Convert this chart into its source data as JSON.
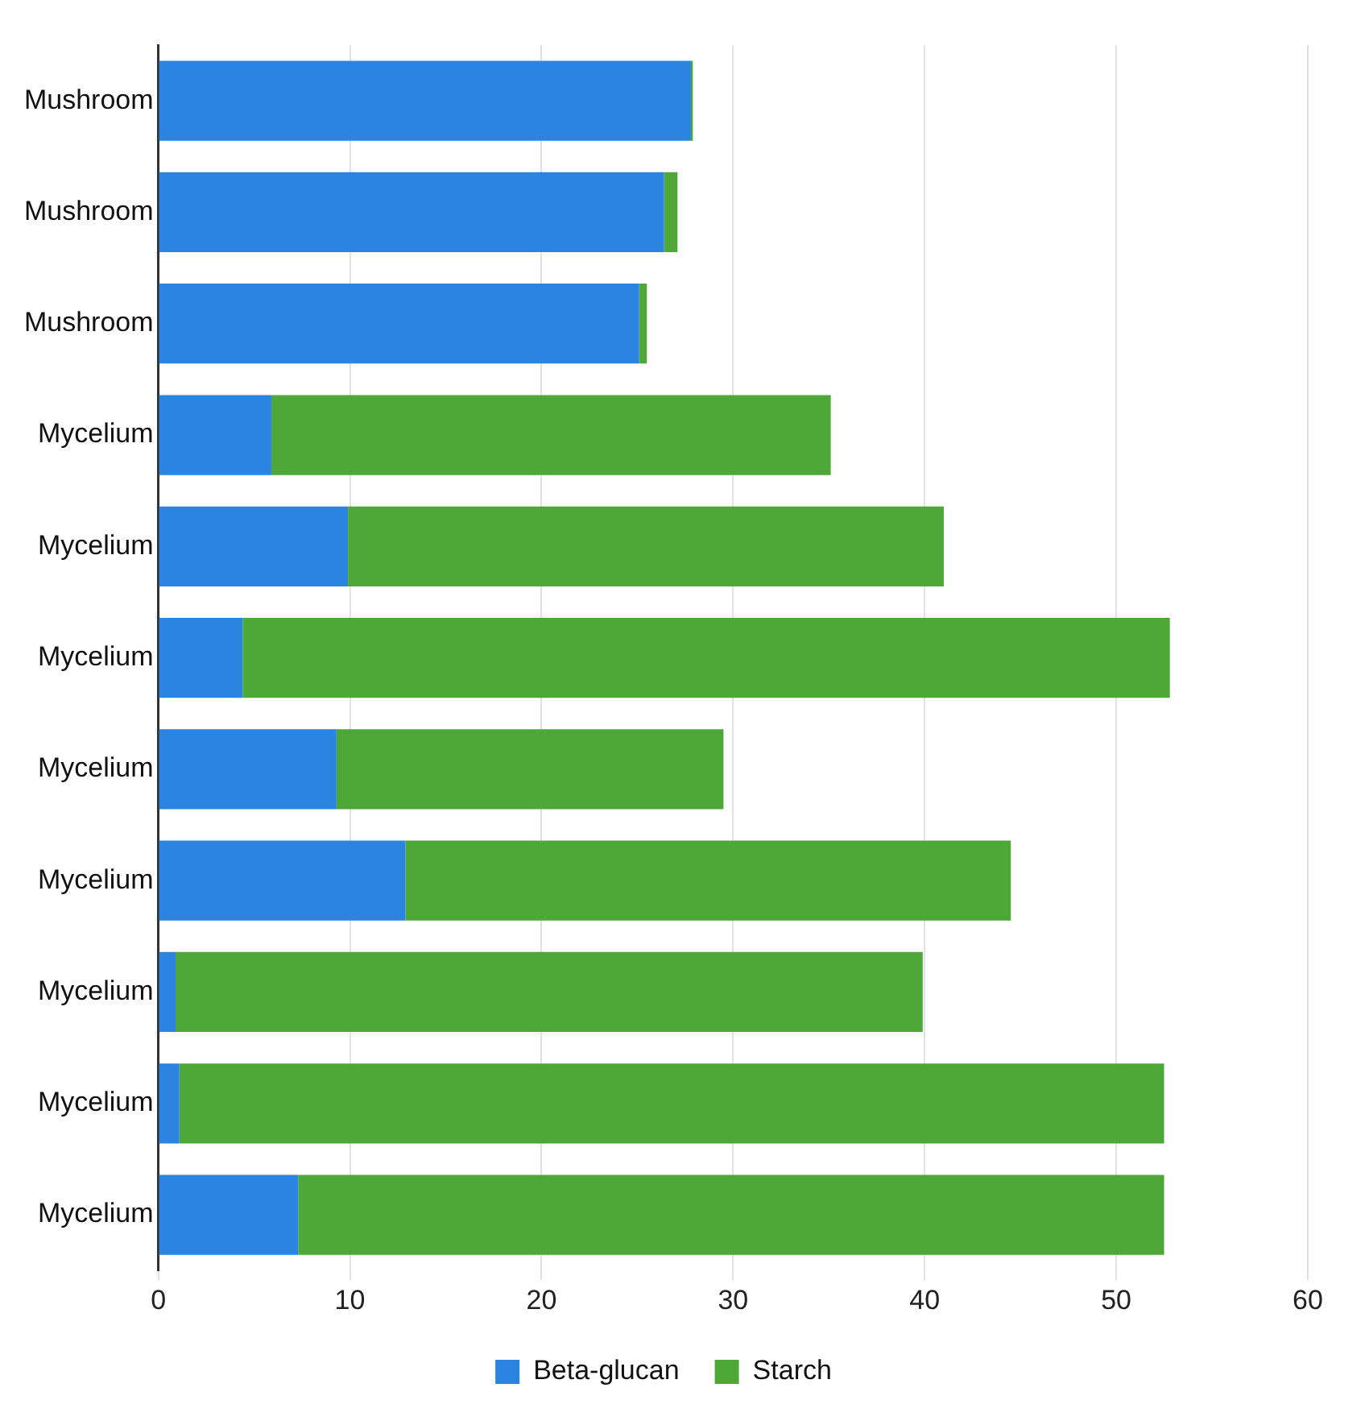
{
  "chart_data": {
    "type": "bar",
    "orientation": "horizontal",
    "stacked": true,
    "categories": [
      "Mushroom",
      "Mushroom",
      "Mushroom",
      "Mycelium",
      "Mycelium",
      "Mycelium",
      "Mycelium",
      "Mycelium",
      "Mycelium",
      "Mycelium",
      "Mycelium"
    ],
    "series": [
      {
        "name": "Beta-glucan",
        "color": "#2a84e0",
        "values": [
          27.8,
          26.4,
          25.1,
          5.9,
          9.9,
          4.4,
          9.3,
          12.9,
          0.9,
          1.1,
          7.3
        ]
      },
      {
        "name": "Starch",
        "color": "#4ea838",
        "values": [
          0.1,
          0.7,
          0.4,
          29.2,
          31.1,
          48.4,
          20.2,
          31.6,
          39.0,
          51.4,
          45.2
        ]
      }
    ],
    "xlim": [
      0,
      60
    ],
    "xticks": [
      0,
      10,
      20,
      30,
      40,
      50,
      60
    ],
    "grid": "x",
    "legend": "bottom"
  }
}
